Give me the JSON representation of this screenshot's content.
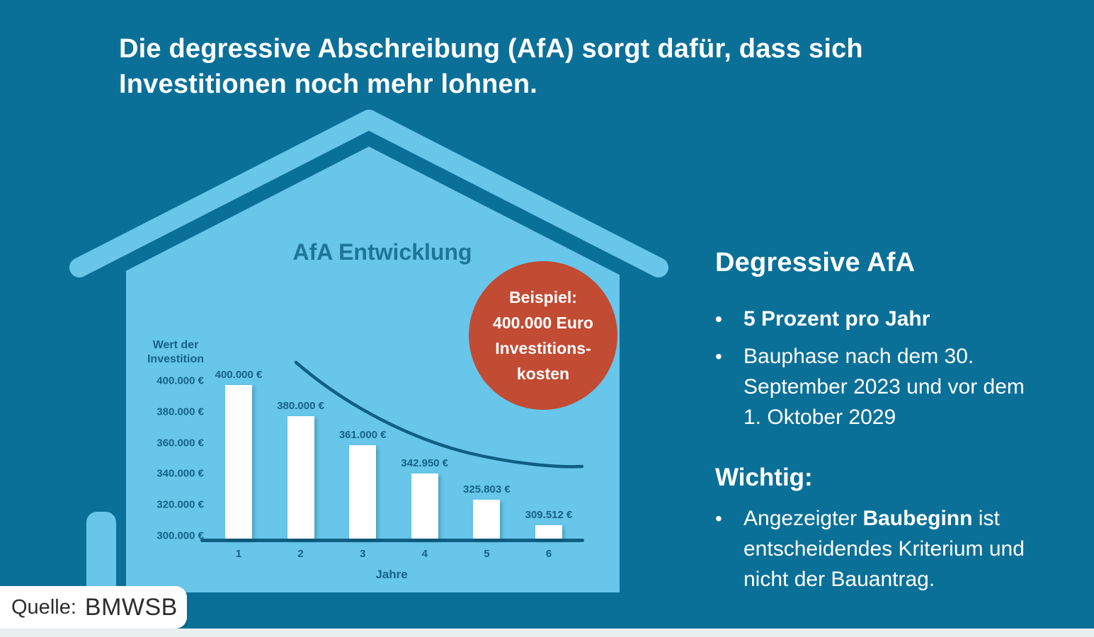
{
  "headline": {
    "line1": "Die degressive Abschreibung (AfA) sorgt dafür, dass sich",
    "line2": "Investitionen noch mehr lohnen."
  },
  "badge": {
    "lines": [
      "Beispiel:",
      "400.000 Euro",
      "Investitions-",
      "kosten"
    ]
  },
  "chart_data": {
    "type": "bar",
    "title": "AfA Entwicklung",
    "ylabel": "Wert der Investition",
    "xlabel": "Jahre",
    "categories": [
      "1",
      "2",
      "3",
      "4",
      "5",
      "6"
    ],
    "values": [
      400000,
      380000,
      361000,
      342950,
      325803,
      309512
    ],
    "bar_labels": [
      "400.000 €",
      "380.000 €",
      "361.000 €",
      "342.950 €",
      "325.803 €",
      "309.512 €"
    ],
    "ytick_values": [
      400000,
      380000,
      360000,
      340000,
      320000,
      300000
    ],
    "ytick_labels": [
      "400.000 €",
      "380.000 €",
      "360.000 €",
      "340.000 €",
      "320.000 €",
      "300.000 €"
    ],
    "ylim": [
      300000,
      400000
    ],
    "grid": false,
    "legend": false,
    "trend_curve": "declining exponential curve above bars",
    "bar_color": "#ffffff"
  },
  "panel": {
    "heading": "Degressive AfA",
    "bullet_marker": "•",
    "bullets": [
      {
        "text": "5 Prozent pro Jahr",
        "bold": true
      },
      {
        "text": "Bauphase nach dem 30. September 2023 und vor dem 1. Oktober 2029",
        "bold": false
      }
    ],
    "important_heading": "Wichtig:",
    "important_bullet": {
      "prefix": "Angezeigter ",
      "bold": "Baubeginn",
      "suffix": " ist entscheidendes Kriterium und nicht der Bauantrag."
    }
  },
  "source": {
    "label": "Quelle:",
    "value": "BMWSB"
  },
  "colors": {
    "background": "#0b7098",
    "house": "#67c6ea",
    "chart_ink": "#166288",
    "chart_title_ink": "#1d7598",
    "axis_ink": "#0f5f84",
    "badge_red": "#c24b33",
    "bar_white": "#ffffff",
    "bottom_strip": "#e9eef0"
  }
}
